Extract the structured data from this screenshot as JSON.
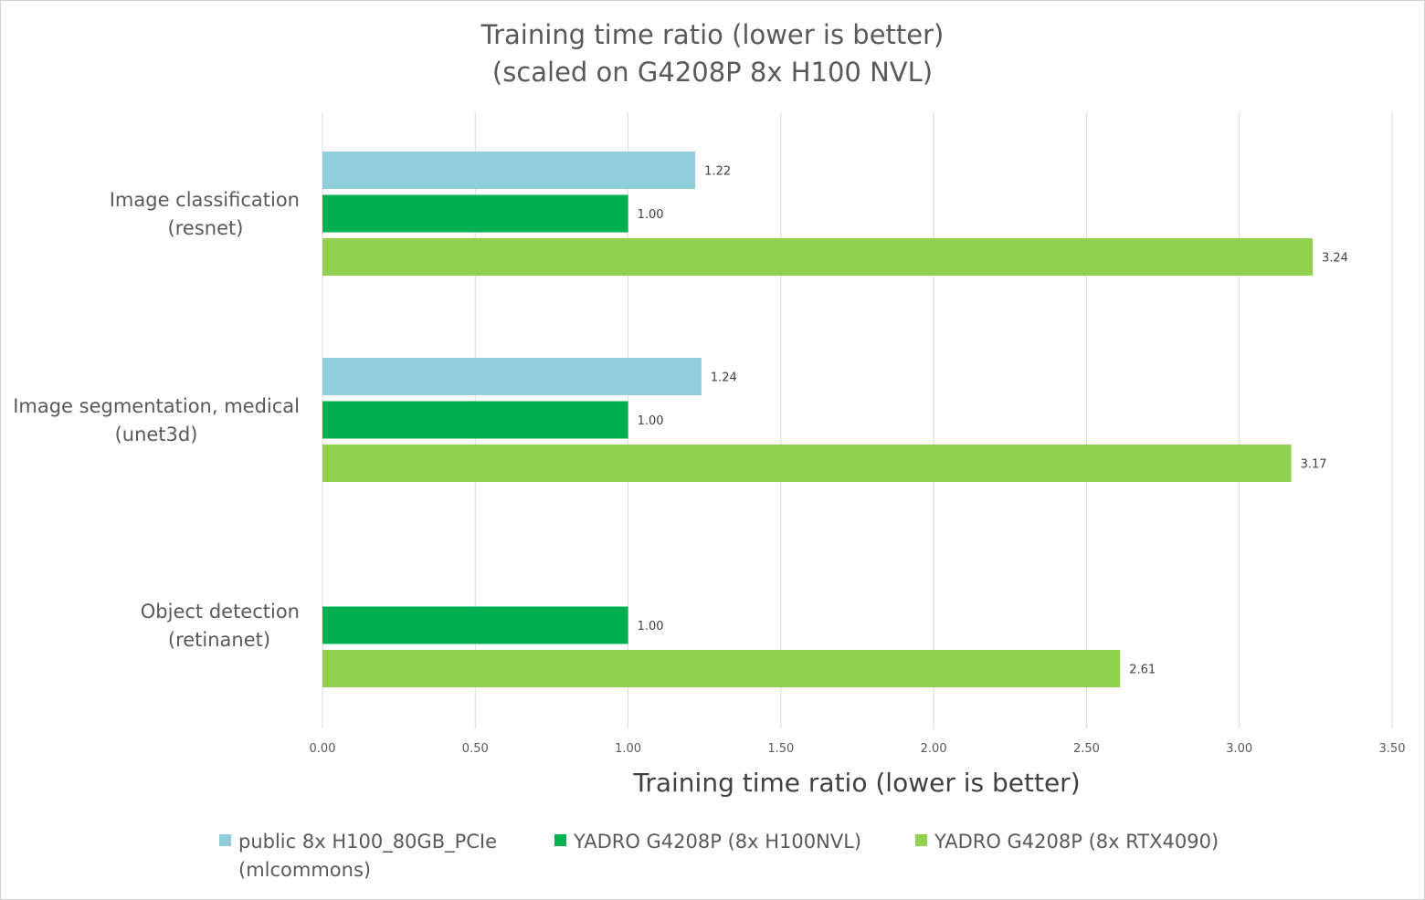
{
  "chart_data": {
    "type": "bar",
    "orientation": "horizontal",
    "title": [
      "Training time ratio (lower is better)",
      "(scaled on G4208P 8x H100 NVL)"
    ],
    "xlabel": "Training time ratio (lower is better)",
    "ylabel": "",
    "xlim": [
      0,
      3.5
    ],
    "xticks": [
      "0.00",
      "0.50",
      "1.00",
      "1.50",
      "2.00",
      "2.50",
      "3.00",
      "3.50"
    ],
    "grid": true,
    "legend_position": "bottom",
    "categories": [
      [
        "Image classification",
        "(resnet)"
      ],
      [
        "Image segmentation, medical",
        "(unet3d)"
      ],
      [
        "Object detection",
        "(retinanet)"
      ]
    ],
    "series": [
      {
        "name": [
          "public 8x H100_80GB_PCIe",
          "(mlcommons)"
        ],
        "color": "#92cddc",
        "values": [
          1.22,
          1.24,
          null
        ],
        "labels": [
          "1.22",
          "1.24",
          null
        ]
      },
      {
        "name": [
          "YADRO G4208P (8x H100NVL)"
        ],
        "color": "#00b050",
        "values": [
          1.0,
          1.0,
          1.0
        ],
        "labels": [
          "1.00",
          "1.00",
          "1.00"
        ]
      },
      {
        "name": [
          "YADRO G4208P (8x RTX4090)"
        ],
        "color": "#92d050",
        "values": [
          3.24,
          3.17,
          2.61
        ],
        "labels": [
          "3.24",
          "3.17",
          "2.61"
        ]
      }
    ]
  }
}
